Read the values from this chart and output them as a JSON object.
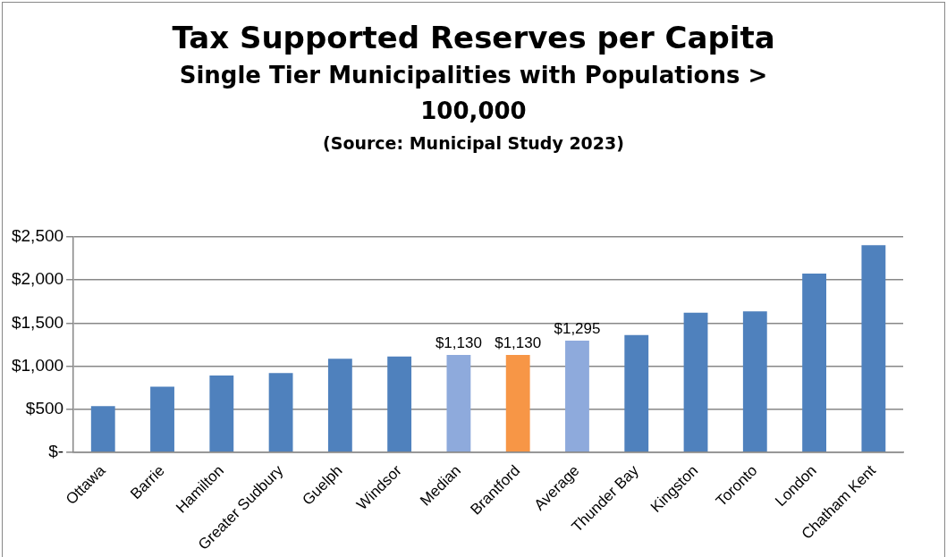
{
  "chart_data": {
    "type": "bar",
    "title": "Tax Supported Reserves per Capita",
    "subtitle": "Single Tier Municipalities with Populations  > 100,000",
    "annotations": [
      "(Source: Municipal Study 2023)"
    ],
    "categories": [
      "Ottawa",
      "Barrie",
      "Hamilton",
      "Greater Sudbury",
      "Guelph",
      "Windsor",
      "Median",
      "Brantford",
      "Average",
      "Thunder Bay",
      "Kingston",
      "Toronto",
      "London",
      "Chatham Kent"
    ],
    "values": [
      535,
      760,
      890,
      920,
      1085,
      1110,
      1130,
      1130,
      1295,
      1360,
      1620,
      1635,
      2075,
      2405
    ],
    "colors": [
      "#4f81bd",
      "#4f81bd",
      "#4f81bd",
      "#4f81bd",
      "#4f81bd",
      "#4f81bd",
      "#8eaadc",
      "#f79646",
      "#8eaadc",
      "#4f81bd",
      "#4f81bd",
      "#4f81bd",
      "#4f81bd",
      "#4f81bd"
    ],
    "value_labels": [
      null,
      null,
      null,
      null,
      null,
      null,
      "$1,130",
      "$1,130",
      "$1,295",
      null,
      null,
      null,
      null,
      null
    ],
    "ylim": [
      0,
      2500
    ],
    "yticks": [
      {
        "value": 0,
        "label": "$-"
      },
      {
        "value": 500,
        "label": "$500"
      },
      {
        "value": 1000,
        "label": "$1,000"
      },
      {
        "value": 1500,
        "label": "$1,500"
      },
      {
        "value": 2000,
        "label": "$2,000"
      },
      {
        "value": 2500,
        "label": "$2,500"
      }
    ],
    "grid": "y",
    "legend": false
  }
}
